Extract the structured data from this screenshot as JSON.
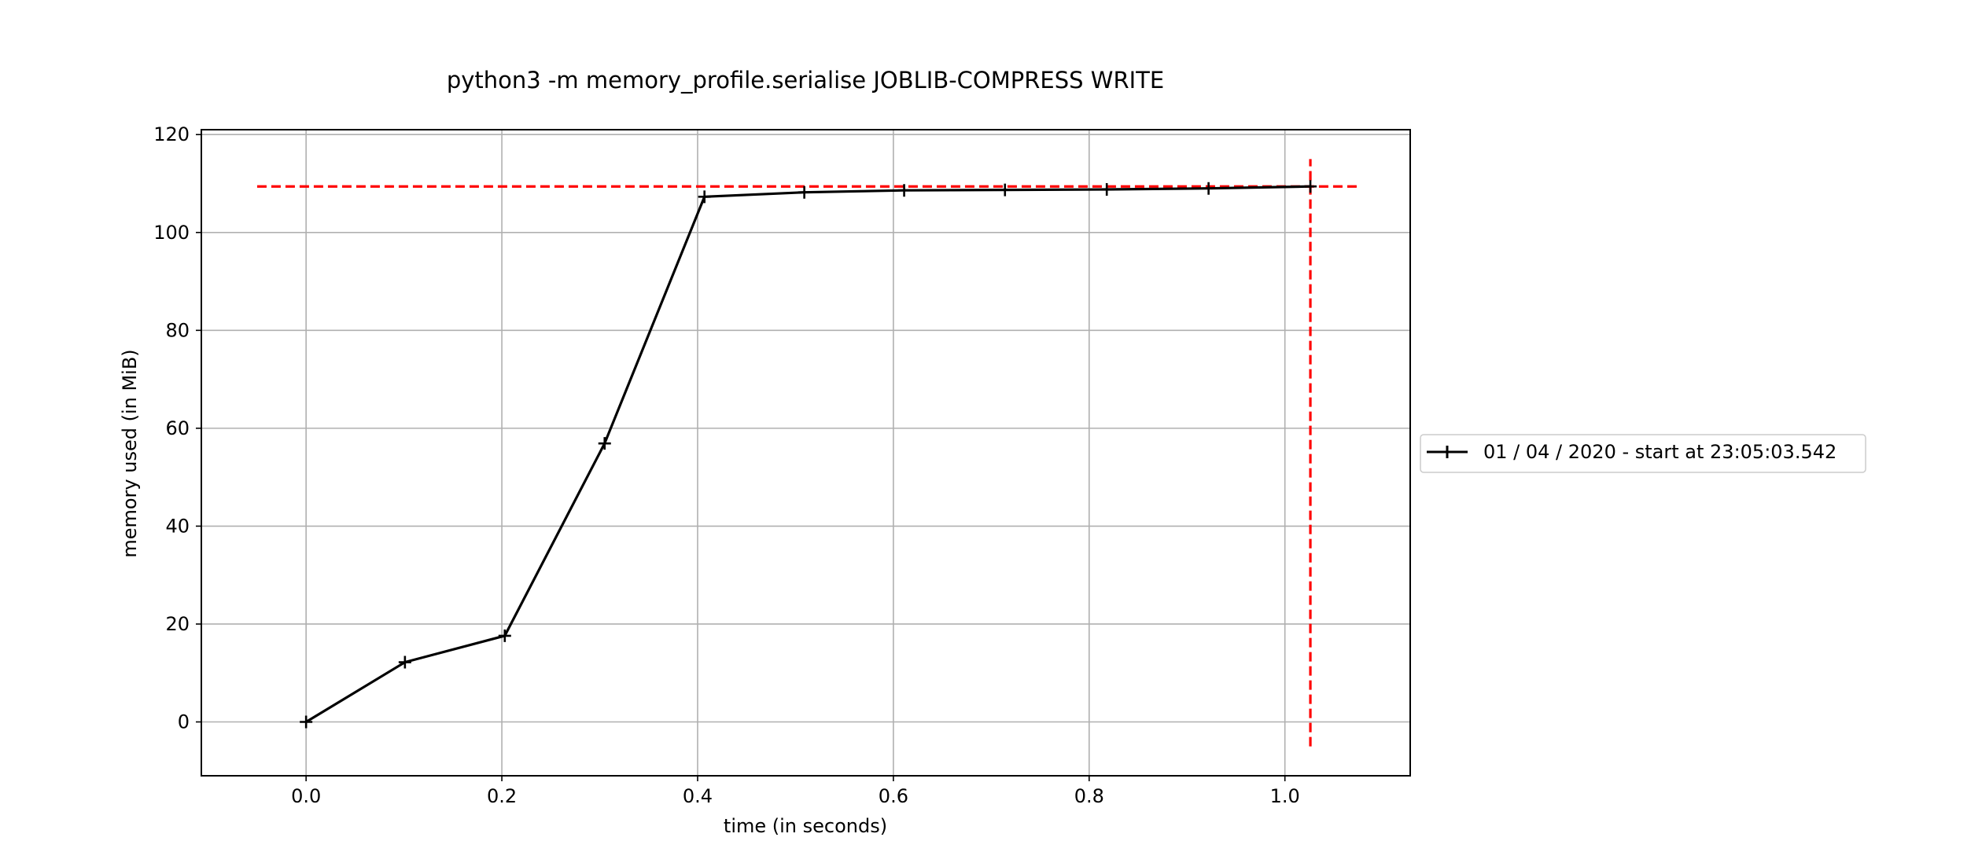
{
  "chart_data": {
    "type": "line",
    "title": "python3 -m memory_profile.serialise JOBLIB-COMPRESS WRITE",
    "xlabel": "time (in seconds)",
    "ylabel": "memory used (in MiB)",
    "xlim": [
      -0.107,
      1.128
    ],
    "ylim": [
      -11,
      121
    ],
    "xticks": [
      0.0,
      0.2,
      0.4,
      0.6,
      0.8,
      1.0
    ],
    "xtick_labels": [
      "0.0",
      "0.2",
      "0.4",
      "0.6",
      "0.8",
      "1.0"
    ],
    "yticks": [
      0,
      20,
      40,
      60,
      80,
      100,
      120
    ],
    "ytick_labels": [
      "0",
      "20",
      "40",
      "60",
      "80",
      "100",
      "120"
    ],
    "grid": true,
    "legend_position": "right",
    "series": [
      {
        "name": "01 / 04 / 2020 - start at 23:05:03.542",
        "color": "#000000",
        "marker": "+",
        "x": [
          0.0,
          0.101,
          0.203,
          0.305,
          0.407,
          0.509,
          0.611,
          0.714,
          0.818,
          0.922,
          1.026
        ],
        "y": [
          0.0,
          12.2,
          17.6,
          56.9,
          107.3,
          108.2,
          108.6,
          108.7,
          108.8,
          109.0,
          109.4
        ]
      }
    ],
    "reference_lines": [
      {
        "orientation": "horizontal",
        "value": 109.4,
        "from": -0.05,
        "to": 1.075,
        "color": "#ff0000",
        "style": "dashed"
      },
      {
        "orientation": "vertical",
        "value": 1.026,
        "from": -5,
        "to": 115,
        "color": "#ff0000",
        "style": "dashed"
      }
    ]
  }
}
